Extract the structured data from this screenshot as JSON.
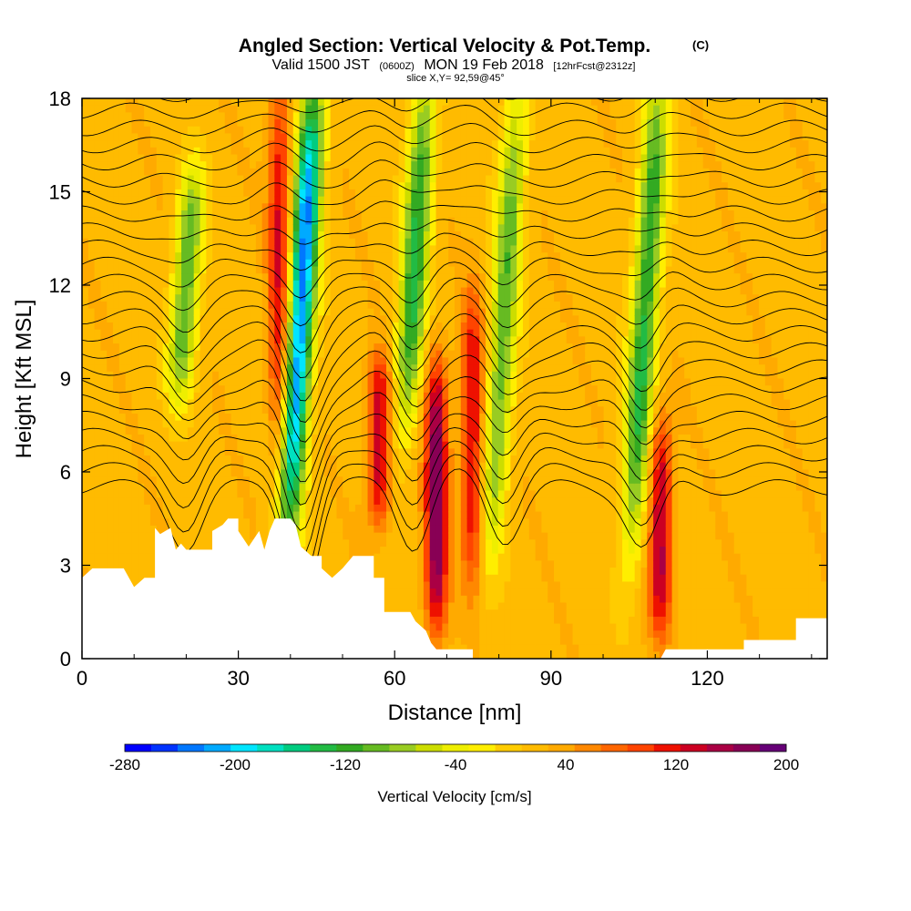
{
  "chart_data": {
    "type": "heatmap",
    "title": "Angled Section: Vertical Velocity & Pot.Temp.",
    "title_units": "(C)",
    "subtitle_prefix": "Valid 1500 JST",
    "subtitle_utc": "(0600Z)",
    "subtitle_date": "MON 19 Feb 2018",
    "subtitle_fcst": "[12hrFcst@2312z]",
    "slice_text": "slice X,Y= 92,59@45°",
    "xlabel": "Distance [nm]",
    "ylabel": "Height [Kft MSL]",
    "xlim": [
      0,
      143
    ],
    "ylim": [
      0,
      18
    ],
    "x_ticks": [
      0,
      30,
      60,
      90,
      120
    ],
    "y_ticks": [
      0,
      3,
      6,
      9,
      12,
      15,
      18
    ],
    "colorbar": {
      "label": "Vertical Velocity [cm/s]",
      "range": [
        -280,
        200
      ],
      "tick_labels": [
        "-280",
        "-200",
        "-120",
        "-40",
        "40",
        "120",
        "200"
      ],
      "colors": [
        "#0000ff",
        "#0033ff",
        "#0077ff",
        "#00aaff",
        "#00e5ff",
        "#00e0c0",
        "#00cc80",
        "#22bb44",
        "#33aa22",
        "#66bb22",
        "#99cc22",
        "#ccdd00",
        "#eeee00",
        "#ffee00",
        "#ffcc00",
        "#ffbb00",
        "#ffaa00",
        "#ff8800",
        "#ff6600",
        "#ff4400",
        "#ee1100",
        "#cc0022",
        "#aa0044",
        "#880055",
        "#660077"
      ]
    },
    "velocity_features": [
      {
        "x": 42,
        "z_bottom": 4.5,
        "z_top": 18,
        "value": -230,
        "kind": "downdraft"
      },
      {
        "x": 64,
        "z_bottom": 8,
        "z_top": 18,
        "value": -130,
        "kind": "downdraft"
      },
      {
        "x": 81,
        "z_bottom": 4,
        "z_top": 18,
        "value": -100,
        "kind": "downdraft"
      },
      {
        "x": 108,
        "z_bottom": 4,
        "z_top": 18,
        "value": -130,
        "kind": "downdraft"
      },
      {
        "x": 20,
        "z_bottom": 9,
        "z_top": 15,
        "value": -110,
        "kind": "downdraft"
      },
      {
        "x": 38,
        "z_bottom": 6.5,
        "z_top": 18,
        "value": 130,
        "kind": "updraft"
      },
      {
        "x": 68,
        "z_bottom": 1.5,
        "z_top": 9,
        "value": 180,
        "kind": "updraft"
      },
      {
        "x": 57,
        "z_bottom": 5,
        "z_top": 9,
        "value": 140,
        "kind": "updraft"
      },
      {
        "x": 75,
        "z_bottom": 3,
        "z_top": 11,
        "value": 130,
        "kind": "updraft"
      },
      {
        "x": 111,
        "z_bottom": 1.5,
        "z_top": 7,
        "value": 150,
        "kind": "updraft"
      }
    ]
  }
}
